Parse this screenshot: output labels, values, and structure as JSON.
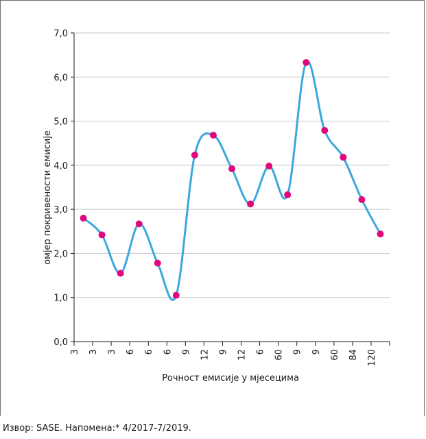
{
  "chart_data": {
    "type": "line",
    "xlabel": "Рочност емисије у мјесецима",
    "ylabel": "омјер покривености емисије",
    "ylim": [
      0,
      7
    ],
    "yticks": [
      "0,0",
      "1,0",
      "2,0",
      "3,0",
      "4,0",
      "5,0",
      "6,0",
      "7,0"
    ],
    "categories": [
      "3",
      "3",
      "3",
      "6",
      "6",
      "6",
      "9",
      "12",
      "9",
      "12",
      "6",
      "60",
      "9",
      "9",
      "60",
      "84",
      "120"
    ],
    "values": [
      2.8,
      2.42,
      1.55,
      2.67,
      1.78,
      1.05,
      4.23,
      4.68,
      3.92,
      3.12,
      3.98,
      3.33,
      6.33,
      4.79,
      4.18,
      3.22,
      2.44
    ],
    "grid": true,
    "colors": {
      "line": "#3aa8dc",
      "marker": "#e0087e",
      "grid": "#c8c8c8"
    }
  },
  "source_note": "Извор: SASE. Напомена:* 4/2017-7/2019."
}
